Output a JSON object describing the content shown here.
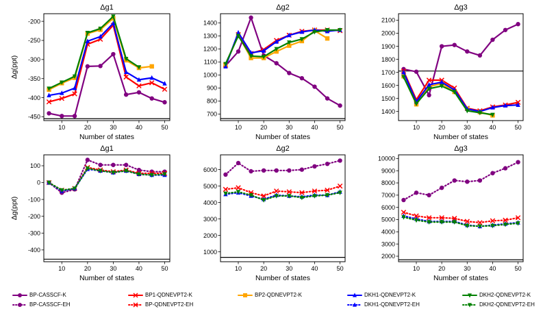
{
  "xlabel": "Number of states",
  "ylabel": "Δg(ppt)",
  "x": [
    5,
    10,
    15,
    20,
    25,
    30,
    35,
    40,
    45,
    50
  ],
  "series_styles": {
    "BP-CASSCF-K": {
      "color": "#800080",
      "dash": "solid",
      "marker": "circle"
    },
    "BP1-QDNEVPT2-K": {
      "color": "#ff0000",
      "dash": "solid",
      "marker": "x"
    },
    "BP2-QDNEVPT2-K": {
      "color": "#ffa500",
      "dash": "solid",
      "marker": "square"
    },
    "DKH1-QDNEVPT2-K": {
      "color": "#0000ff",
      "dash": "solid",
      "marker": "triangle-up"
    },
    "DKH2-QDNEVPT2-K": {
      "color": "#008000",
      "dash": "solid",
      "marker": "triangle-down"
    },
    "BP-CASSCF-EH": {
      "color": "#800080",
      "dash": "dotted",
      "marker": "circle"
    },
    "BP-QDNEVPT2-EH": {
      "color": "#ff0000",
      "dash": "dotted",
      "marker": "x"
    },
    "DKH1-QDNEVPT2-EH": {
      "color": "#0000ff",
      "dash": "dotted",
      "marker": "triangle-up"
    },
    "DKH2-QDNEVPT2-EH": {
      "color": "#008000",
      "dash": "dotted",
      "marker": "triangle-down"
    }
  },
  "legend": {
    "items": [
      {
        "name": "BP-CASSCF-K"
      },
      {
        "name": "BP-CASSCF-EH"
      },
      {
        "name": "BP1-QDNEVPT2-K"
      },
      {
        "name": "BP-QDNEVPT2-EH"
      },
      {
        "name": "BP2-QDNEVPT2-K"
      },
      {
        "name": "DKH1-QDNEVPT2-K"
      },
      {
        "name": "DKH1-QDNEVPT2-EH"
      },
      {
        "name": "DKH2-QDNEVPT2-K"
      },
      {
        "name": "DKH2-QDNEVPT2-EH"
      }
    ]
  },
  "chart_data": [
    {
      "type": "line",
      "title": "Δg1",
      "xlabel": "Number of states",
      "ylabel": "Δg(ppt)",
      "xlim": [
        3,
        52
      ],
      "ylim": [
        -460,
        -180
      ],
      "xticks": [
        10,
        20,
        30,
        40,
        50
      ],
      "yticks": [
        -450,
        -400,
        -350,
        -300,
        -250,
        -200
      ],
      "hline": -455,
      "series": [
        {
          "name": "BP-CASSCF-K",
          "x": [
            5,
            10,
            15,
            20,
            25,
            30,
            35,
            40,
            45,
            50
          ],
          "values": [
            -441,
            -448,
            -448,
            -318,
            -317,
            -286,
            -392,
            -386,
            -402,
            -412
          ]
        },
        {
          "name": "BP1-QDNEVPT2-K",
          "x": [
            5,
            10,
            15,
            20,
            25,
            30,
            35,
            40,
            45,
            50
          ],
          "values": [
            -411,
            -402,
            -390,
            -260,
            -247,
            -210,
            -346,
            -369,
            -361,
            -378
          ]
        },
        {
          "name": "BP2-QDNEVPT2-K",
          "x": [
            5,
            10,
            15,
            20,
            25,
            30,
            35,
            40,
            45
          ],
          "values": [
            -379,
            -362,
            -348,
            -232,
            -222,
            -192,
            -302,
            -322,
            -318
          ]
        },
        {
          "name": "DKH1-QDNEVPT2-K",
          "x": [
            5,
            10,
            15,
            20,
            25,
            30,
            35,
            40,
            45,
            50
          ],
          "values": [
            -394,
            -388,
            -375,
            -252,
            -240,
            -205,
            -333,
            -353,
            -348,
            -363
          ]
        },
        {
          "name": "DKH2-QDNEVPT2-K",
          "x": [
            5,
            10,
            15,
            20,
            25,
            30,
            35,
            40
          ],
          "values": [
            -376,
            -360,
            -344,
            -230,
            -219,
            -187,
            -298,
            -320
          ]
        }
      ]
    },
    {
      "type": "line",
      "title": "Δg2",
      "xlabel": "Number of states",
      "ylabel": "",
      "xlim": [
        3,
        52
      ],
      "ylim": [
        650,
        1470
      ],
      "xticks": [
        10,
        20,
        30,
        40,
        50
      ],
      "yticks": [
        700,
        800,
        900,
        1000,
        1100,
        1200,
        1300,
        1400
      ],
      "hline": 665,
      "series": [
        {
          "name": "BP-CASSCF-K",
          "x": [
            5,
            10,
            15,
            20,
            25,
            30,
            35,
            40,
            45,
            50
          ],
          "values": [
            1070,
            1180,
            1440,
            1150,
            1090,
            1015,
            975,
            910,
            820,
            765
          ]
        },
        {
          "name": "BP1-QDNEVPT2-K",
          "x": [
            5,
            10,
            15,
            20,
            25,
            30,
            35,
            40,
            45,
            50
          ],
          "values": [
            1075,
            1310,
            1165,
            1195,
            1265,
            1305,
            1335,
            1345,
            1345,
            1340
          ]
        },
        {
          "name": "BP2-QDNEVPT2-K",
          "x": [
            5,
            10,
            15,
            20,
            25,
            30,
            35,
            40,
            45
          ],
          "values": [
            1080,
            1305,
            1130,
            1130,
            1180,
            1225,
            1260,
            1340,
            1280
          ]
        },
        {
          "name": "DKH1-QDNEVPT2-K",
          "x": [
            5,
            10,
            15,
            20,
            25,
            30,
            35,
            40,
            45,
            50
          ],
          "values": [
            1065,
            1325,
            1170,
            1185,
            1255,
            1305,
            1330,
            1345,
            1335,
            1345
          ]
        },
        {
          "name": "DKH2-QDNEVPT2-K",
          "x": [
            5,
            10,
            15,
            20,
            25,
            30,
            35,
            40,
            45,
            50
          ],
          "values": [
            1085,
            1300,
            1145,
            1140,
            1200,
            1250,
            1275,
            1330,
            1345,
            1345
          ]
        }
      ]
    },
    {
      "type": "line",
      "title": "Δg3",
      "xlabel": "Number of states",
      "ylabel": "",
      "xlim": [
        3,
        52
      ],
      "ylim": [
        1330,
        2150
      ],
      "xticks": [
        10,
        20,
        30,
        40,
        50
      ],
      "yticks": [
        1400,
        1500,
        1600,
        1700,
        1800,
        1900,
        2000,
        2100
      ],
      "hline": 1710,
      "series": [
        {
          "name": "BP-CASSCF-K",
          "x": [
            5,
            10,
            15,
            20,
            25,
            30,
            35,
            40,
            45,
            50
          ],
          "values": [
            1725,
            1705,
            1525,
            1900,
            1910,
            1860,
            1830,
            1950,
            2025,
            2070
          ]
        },
        {
          "name": "BP1-QDNEVPT2-K",
          "x": [
            5,
            10,
            15,
            20,
            25,
            30,
            35,
            40,
            45,
            50
          ],
          "values": [
            1710,
            1490,
            1640,
            1640,
            1580,
            1425,
            1405,
            1435,
            1450,
            1470
          ]
        },
        {
          "name": "BP2-QDNEVPT2-K",
          "x": [
            5,
            10,
            15,
            20,
            25,
            30,
            35,
            40
          ],
          "values": [
            1670,
            1455,
            1590,
            1615,
            1550,
            1420,
            1395,
            1370
          ]
        },
        {
          "name": "DKH1-QDNEVPT2-K",
          "x": [
            5,
            10,
            15,
            20,
            25,
            30,
            35,
            40,
            45,
            50
          ],
          "values": [
            1700,
            1475,
            1605,
            1625,
            1565,
            1420,
            1400,
            1430,
            1445,
            1450
          ]
        },
        {
          "name": "DKH2-QDNEVPT2-K",
          "x": [
            5,
            10,
            15,
            20,
            25,
            30,
            35,
            40
          ],
          "values": [
            1665,
            1460,
            1575,
            1595,
            1550,
            1405,
            1390,
            1375
          ]
        }
      ]
    },
    {
      "type": "line",
      "title": "Δg1",
      "xlabel": "Number of states",
      "ylabel": "Δg(ppt)",
      "xlim": [
        3,
        52
      ],
      "ylim": [
        -470,
        165
      ],
      "xticks": [
        10,
        20,
        30,
        40,
        50
      ],
      "yticks": [
        -400,
        -300,
        -200,
        -100,
        0,
        100
      ],
      "hline": -455,
      "series": [
        {
          "name": "BP-CASSCF-EH",
          "x": [
            5,
            10,
            15,
            20,
            25,
            30,
            35,
            40,
            45,
            50
          ],
          "values": [
            0,
            -60,
            -40,
            135,
            105,
            105,
            105,
            75,
            65,
            65
          ]
        },
        {
          "name": "BP-QDNEVPT2-EH",
          "x": [
            5,
            10,
            15,
            20,
            25,
            30,
            35,
            40,
            45,
            50
          ],
          "values": [
            0,
            -45,
            -35,
            90,
            75,
            65,
            75,
            55,
            55,
            55
          ]
        },
        {
          "name": "DKH1-QDNEVPT2-EH",
          "x": [
            5,
            10,
            15,
            20,
            25,
            30,
            35,
            40,
            45,
            50
          ],
          "values": [
            0,
            -50,
            -35,
            80,
            70,
            60,
            70,
            50,
            45,
            45
          ]
        },
        {
          "name": "DKH2-QDNEVPT2-EH",
          "x": [
            5,
            10,
            15,
            20,
            25,
            30,
            35,
            40,
            45,
            50
          ],
          "values": [
            0,
            -45,
            -35,
            85,
            70,
            60,
            70,
            50,
            45,
            50
          ]
        }
      ]
    },
    {
      "type": "line",
      "title": "Δg2",
      "xlabel": "Number of states",
      "ylabel": "",
      "xlim": [
        3,
        52
      ],
      "ylim": [
        400,
        6900
      ],
      "xticks": [
        10,
        20,
        30,
        40,
        50
      ],
      "yticks": [
        1000,
        2000,
        3000,
        4000,
        5000,
        6000
      ],
      "hline": 665,
      "series": [
        {
          "name": "BP-CASSCF-EH",
          "x": [
            5,
            10,
            15,
            20,
            25,
            30,
            35,
            40,
            45,
            50
          ],
          "values": [
            5700,
            6400,
            5900,
            5950,
            5950,
            5950,
            6000,
            6200,
            6350,
            6550
          ]
        },
        {
          "name": "BP-QDNEVPT2-EH",
          "x": [
            5,
            10,
            15,
            20,
            25,
            30,
            35,
            40,
            45,
            50
          ],
          "values": [
            4800,
            4900,
            4600,
            4400,
            4700,
            4650,
            4600,
            4700,
            4750,
            5000
          ]
        },
        {
          "name": "DKH1-QDNEVPT2-EH",
          "x": [
            5,
            10,
            15,
            20,
            25,
            30,
            35,
            40,
            45,
            50
          ],
          "values": [
            4500,
            4600,
            4400,
            4200,
            4450,
            4400,
            4350,
            4450,
            4450,
            4650
          ]
        },
        {
          "name": "DKH2-QDNEVPT2-EH",
          "x": [
            5,
            10,
            15,
            20,
            25,
            30,
            35,
            40,
            45,
            50
          ],
          "values": [
            4550,
            4650,
            4450,
            4150,
            4400,
            4400,
            4300,
            4400,
            4450,
            4600
          ]
        }
      ]
    },
    {
      "type": "line",
      "title": "Δg3",
      "xlabel": "Number of states",
      "ylabel": "",
      "xlim": [
        3,
        52
      ],
      "ylim": [
        1550,
        10300
      ],
      "xticks": [
        10,
        20,
        30,
        40,
        50
      ],
      "yticks": [
        2000,
        3000,
        4000,
        5000,
        6000,
        7000,
        8000,
        9000,
        10000
      ],
      "hline": 1710,
      "series": [
        {
          "name": "BP-CASSCF-EH",
          "x": [
            5,
            10,
            15,
            20,
            25,
            30,
            35,
            40,
            45,
            50
          ],
          "values": [
            6600,
            7200,
            7000,
            7600,
            8200,
            8100,
            8200,
            8800,
            9200,
            9700
          ]
        },
        {
          "name": "BP-QDNEVPT2-EH",
          "x": [
            5,
            10,
            15,
            20,
            25,
            30,
            35,
            40,
            45,
            50
          ],
          "values": [
            5600,
            5300,
            5150,
            5150,
            5100,
            4850,
            4750,
            4900,
            4950,
            5150
          ]
        },
        {
          "name": "DKH1-QDNEVPT2-EH",
          "x": [
            5,
            10,
            15,
            20,
            25,
            30,
            35,
            40,
            45,
            50
          ],
          "values": [
            5300,
            5050,
            4850,
            4850,
            4850,
            4550,
            4450,
            4550,
            4650,
            4750
          ]
        },
        {
          "name": "DKH2-QDNEVPT2-EH",
          "x": [
            5,
            10,
            15,
            20,
            25,
            30,
            35,
            40,
            45,
            50
          ],
          "values": [
            5200,
            4950,
            4800,
            4800,
            4800,
            4500,
            4450,
            4500,
            4600,
            4700
          ]
        }
      ]
    }
  ]
}
